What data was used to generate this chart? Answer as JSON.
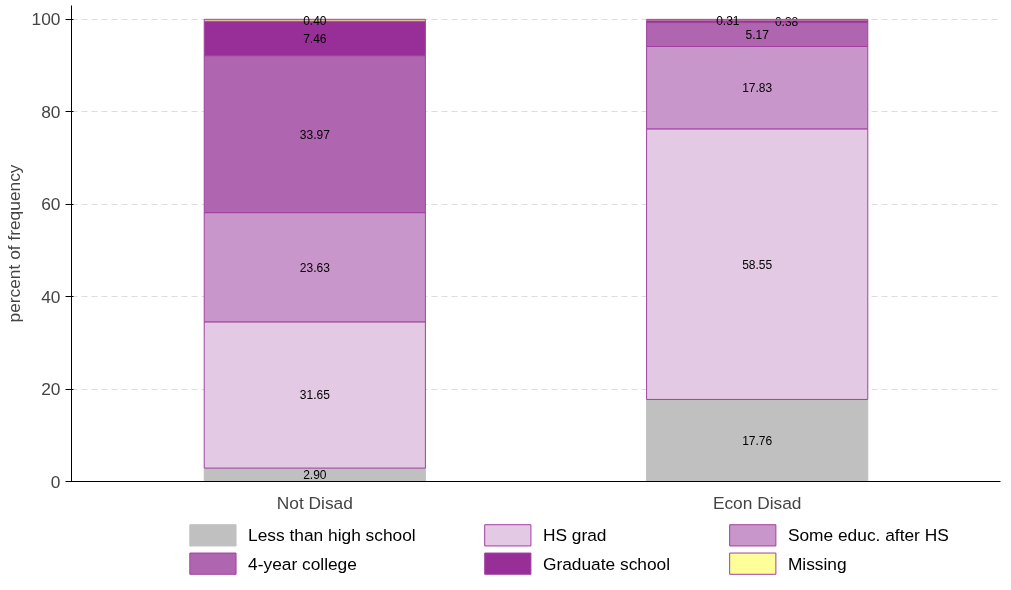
{
  "chart_data": {
    "type": "bar",
    "stacked": true,
    "ylabel": "percent of frequency",
    "categories": [
      "Not Disad",
      "Econ Disad"
    ],
    "series": [
      {
        "name": "Less than high school",
        "color": "#c0c0c0",
        "values": [
          2.9,
          17.76
        ],
        "value_labels": [
          "2.90",
          "17.76"
        ]
      },
      {
        "name": "HS grad",
        "color": "#e3c9e3",
        "values": [
          31.65,
          58.55
        ],
        "value_labels": [
          "31.65",
          "58.55"
        ]
      },
      {
        "name": "Some educ. after HS",
        "color": "#c996cc",
        "values": [
          23.63,
          17.83
        ],
        "value_labels": [
          "23.63",
          "17.83"
        ]
      },
      {
        "name": "4-year college",
        "color": "#b065b0",
        "values": [
          33.97,
          5.17
        ],
        "value_labels": [
          "33.97",
          "5.17"
        ]
      },
      {
        "name": "Graduate school",
        "color": "#982f98",
        "values": [
          7.46,
          0.38
        ],
        "value_labels": [
          "7.46",
          "0.38"
        ]
      },
      {
        "name": "Missing",
        "color": "#ffff99",
        "values": [
          0.4,
          0.31
        ],
        "value_labels": [
          "0.40",
          "0.31"
        ]
      }
    ],
    "ylim": [
      0,
      103
    ],
    "yticks": [
      0,
      20,
      40,
      60,
      80,
      100
    ],
    "grid": "y",
    "legend": "bottom"
  }
}
